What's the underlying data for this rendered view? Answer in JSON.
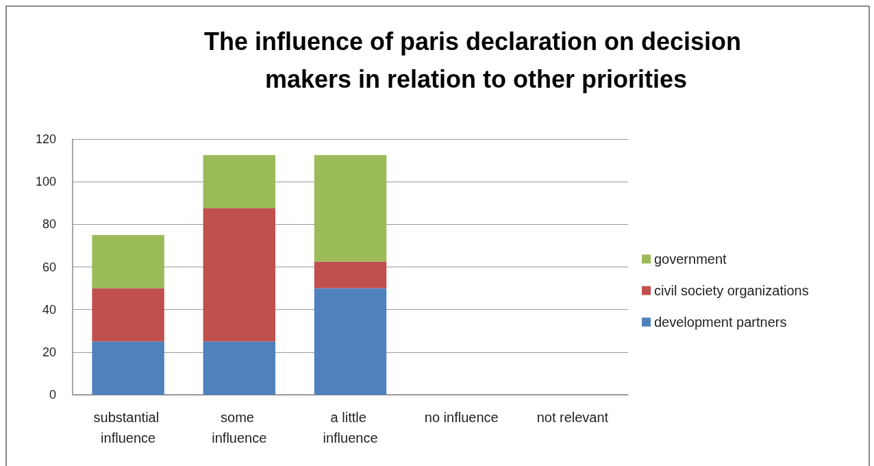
{
  "chart_data": {
    "type": "bar",
    "title": "The influence of paris declaration on decision makers in relation to other priorities",
    "categories": [
      "substantial influence",
      "some influence",
      "a little influence",
      "no influence",
      "not relevant"
    ],
    "stacked": true,
    "series": [
      {
        "name": "development partners",
        "color": "#4f81bd",
        "values": [
          25,
          25,
          50,
          0,
          0
        ]
      },
      {
        "name": "civil society organizations",
        "color": "#c0504d",
        "values": [
          25,
          62.5,
          12.5,
          0,
          0
        ]
      },
      {
        "name": "government",
        "color": "#9bbb59",
        "values": [
          25,
          25,
          50,
          0,
          0
        ]
      }
    ],
    "ylim": [
      0,
      120
    ],
    "yticks": [
      0,
      20,
      40,
      60,
      80,
      100,
      120
    ],
    "grid": "y",
    "legend": "right"
  }
}
